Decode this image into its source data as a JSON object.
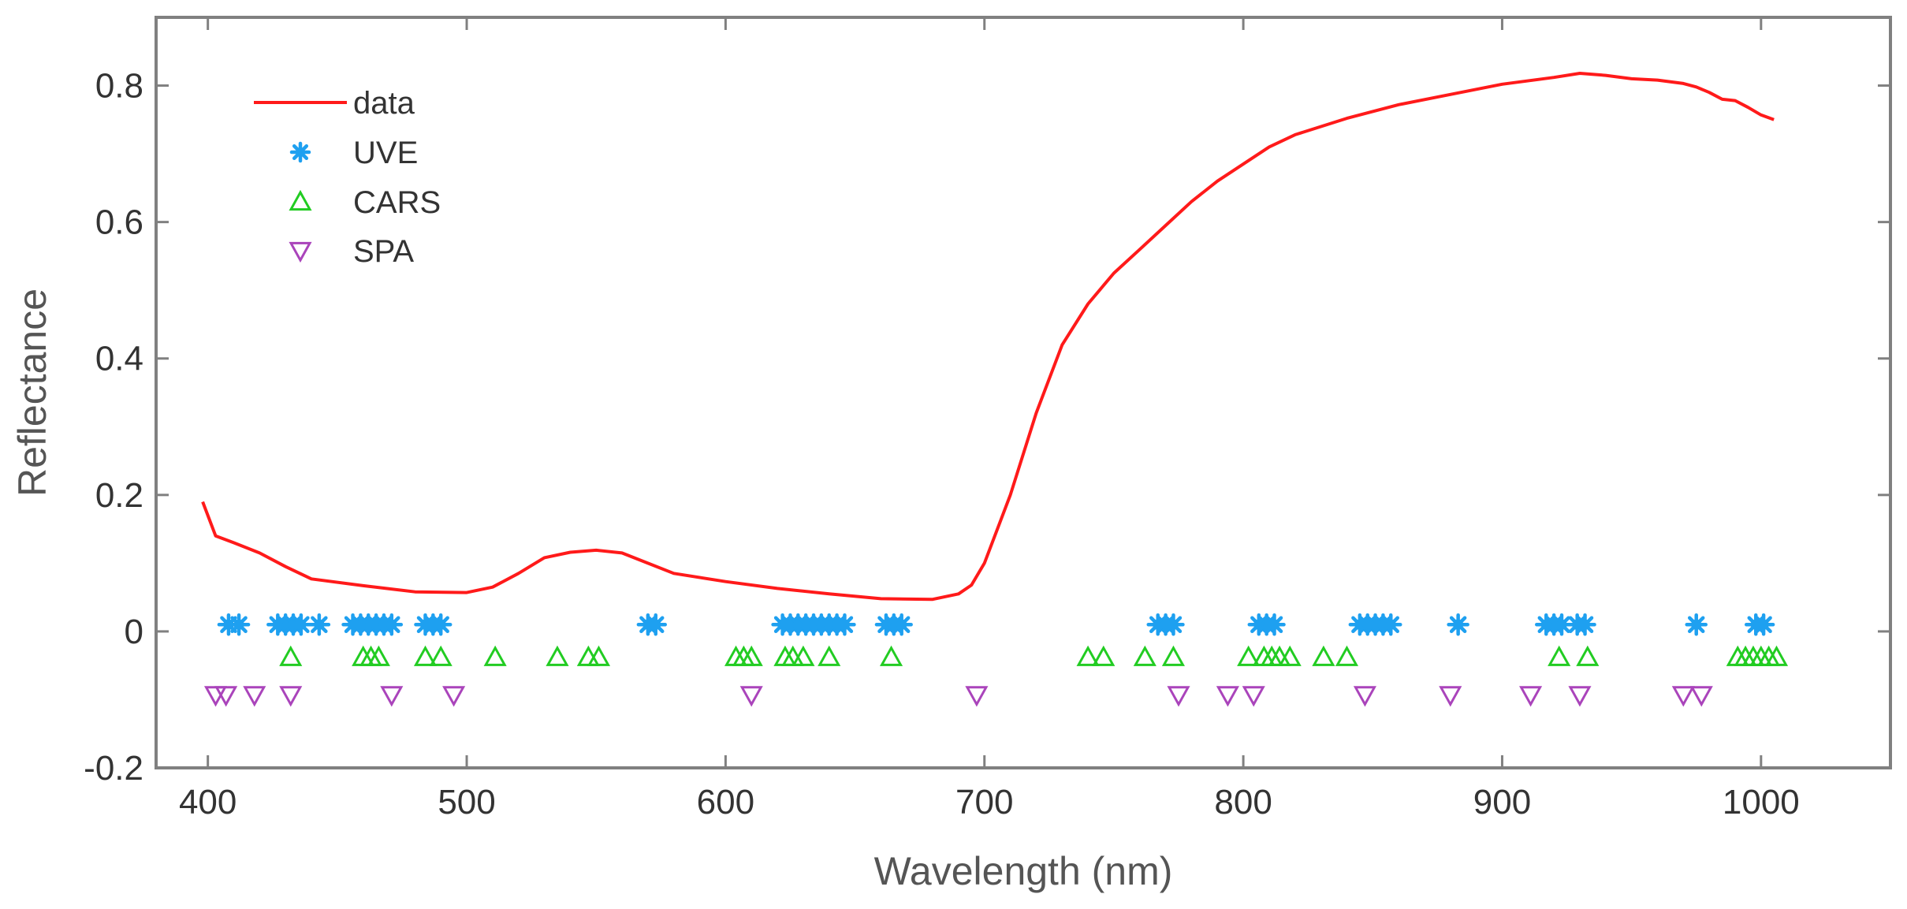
{
  "chart_data": {
    "type": "line",
    "title": "",
    "xlabel": "Wavelength (nm)",
    "ylabel": "Reflectance",
    "xlim": [
      380,
      1050
    ],
    "ylim": [
      -0.2,
      0.9
    ],
    "xticks": [
      400,
      500,
      600,
      700,
      800,
      900,
      1000
    ],
    "xtick_labels": [
      "400",
      "500",
      "600",
      "700",
      "800",
      "900",
      "1000"
    ],
    "yticks": [
      -0.2,
      0,
      0.2,
      0.4,
      0.6,
      0.8
    ],
    "ytick_labels": [
      "-0.2",
      "0",
      "0.2",
      "0.4",
      "0.6",
      "0.8"
    ],
    "grid": false,
    "legend_position": "top-left",
    "colors": {
      "data": "#ff1a1a",
      "UVE": "#1ea0f0",
      "CARS": "#22cc22",
      "SPA": "#aa44bb",
      "axis": "#808080"
    },
    "series": [
      {
        "name": "data",
        "kind": "line",
        "x": [
          398,
          403,
          410,
          420,
          430,
          440,
          460,
          480,
          500,
          510,
          520,
          530,
          540,
          550,
          560,
          570,
          580,
          600,
          620,
          640,
          660,
          680,
          690,
          695,
          700,
          710,
          720,
          730,
          740,
          750,
          760,
          770,
          780,
          790,
          800,
          810,
          820,
          840,
          860,
          880,
          900,
          920,
          930,
          940,
          950,
          960,
          970,
          975,
          980,
          985,
          990,
          995,
          1000,
          1005
        ],
        "y": [
          0.19,
          0.14,
          0.13,
          0.115,
          0.095,
          0.077,
          0.067,
          0.058,
          0.057,
          0.065,
          0.085,
          0.108,
          0.116,
          0.119,
          0.115,
          0.1,
          0.085,
          0.073,
          0.063,
          0.055,
          0.048,
          0.047,
          0.055,
          0.068,
          0.1,
          0.2,
          0.32,
          0.42,
          0.48,
          0.525,
          0.56,
          0.595,
          0.63,
          0.66,
          0.685,
          0.71,
          0.728,
          0.752,
          0.772,
          0.787,
          0.802,
          0.812,
          0.818,
          0.815,
          0.81,
          0.808,
          0.803,
          0.798,
          0.79,
          0.78,
          0.778,
          0.768,
          0.757,
          0.75
        ]
      },
      {
        "name": "UVE",
        "kind": "marker",
        "marker": "asterisk",
        "y_level": 0.01,
        "x": [
          408,
          412,
          427,
          430,
          433,
          436,
          443,
          456,
          459,
          462,
          465,
          468,
          471,
          484,
          487,
          490,
          570,
          573,
          622,
          625,
          628,
          631,
          634,
          637,
          640,
          643,
          646,
          662,
          665,
          668,
          767,
          770,
          773,
          806,
          809,
          812,
          845,
          848,
          851,
          854,
          857,
          883,
          917,
          920,
          923,
          929,
          932,
          975,
          998,
          1001
        ]
      },
      {
        "name": "CARS",
        "kind": "marker",
        "marker": "triangle-up",
        "y_level": -0.038,
        "x": [
          432,
          460,
          463,
          466,
          484,
          490,
          511,
          535,
          547,
          551,
          604,
          607,
          610,
          623,
          626,
          630,
          640,
          664,
          740,
          746,
          762,
          773,
          802,
          808,
          811,
          814,
          818,
          831,
          840,
          922,
          933,
          991,
          994,
          997,
          1000,
          1003,
          1006
        ]
      },
      {
        "name": "SPA",
        "kind": "marker",
        "marker": "triangle-down",
        "y_level": -0.093,
        "x": [
          403,
          407,
          418,
          432,
          471,
          495,
          610,
          697,
          775,
          794,
          804,
          847,
          880,
          911,
          930,
          970,
          977
        ]
      }
    ]
  }
}
